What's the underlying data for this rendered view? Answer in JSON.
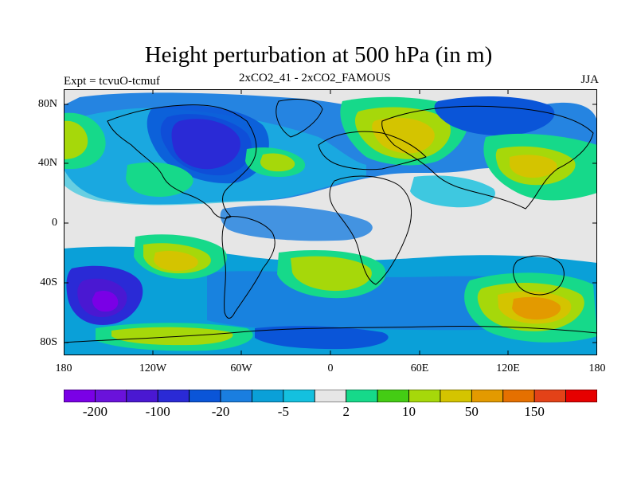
{
  "title": "Height perturbation at 500 hPa (in m)",
  "left_label": "Expt = tcvuO-tcmuf",
  "center_label": "2xCO2_41 - 2xCO2_FAMOUS",
  "right_label": "JJA",
  "y_ticks": [
    "80N",
    "40N",
    "0",
    "40S",
    "80S"
  ],
  "x_ticks": [
    "180",
    "120W",
    "60W",
    "0",
    "60E",
    "120E",
    "180"
  ],
  "colorbar": {
    "colors": [
      "#7a00e6",
      "#6a12db",
      "#4a18d2",
      "#2a2ad6",
      "#0a55d8",
      "#1a7ee0",
      "#0aa0d8",
      "#14c0df",
      "#e6e6e6",
      "#16d98a",
      "#44cc14",
      "#a6d80a",
      "#d4c400",
      "#e39a00",
      "#e57000",
      "#e34218",
      "#e60000"
    ],
    "labels": [
      "-200",
      "-100",
      "-20",
      "-5",
      "2",
      "10",
      "50",
      "150"
    ]
  },
  "map_regions": {
    "legend_scale_note": "",
    "fields": [
      {
        "name": "arctic-north-america-low",
        "level": -100
      },
      {
        "name": "siberia-high",
        "level": 50
      },
      {
        "name": "south-pacific-low",
        "level": -200
      },
      {
        "name": "south-indian-ocean-high",
        "level": 150
      },
      {
        "name": "south-atlantic-high",
        "level": 10
      },
      {
        "name": "east-pacific-high",
        "level": 50
      }
    ]
  }
}
